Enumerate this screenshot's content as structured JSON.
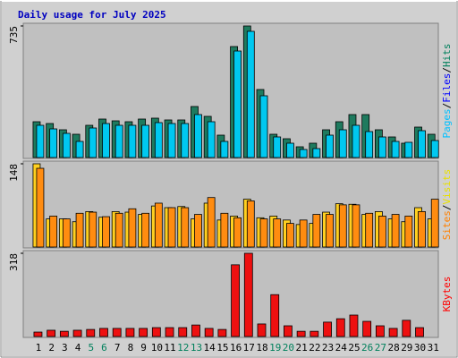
{
  "title": "Daily usage for July 2025",
  "categories": [
    "1",
    "2",
    "3",
    "4",
    "5",
    "6",
    "7",
    "8",
    "9",
    "10",
    "11",
    "12",
    "13",
    "14",
    "15",
    "16",
    "17",
    "18",
    "19",
    "20",
    "21",
    "22",
    "23",
    "24",
    "25",
    "26",
    "27",
    "28",
    "29",
    "30",
    "31"
  ],
  "weekend": [
    false,
    false,
    false,
    false,
    true,
    true,
    false,
    false,
    false,
    false,
    false,
    true,
    true,
    false,
    false,
    false,
    false,
    false,
    true,
    true,
    false,
    false,
    false,
    false,
    false,
    true,
    true,
    false,
    false,
    false,
    false
  ],
  "weekend_color": "#00805c",
  "chart_data": [
    {
      "type": "bar",
      "ylim": [
        0,
        735
      ],
      "yticks": [
        735
      ],
      "legend": [
        {
          "text": "Pages",
          "color": "#00c0ff"
        },
        {
          "text": "/",
          "color": "#000000"
        },
        {
          "text": "Files",
          "color": "#0000ff"
        },
        {
          "text": "/",
          "color": "#000000"
        },
        {
          "text": "Hits",
          "color": "#00805c"
        }
      ],
      "series": [
        {
          "color": "#1e7a5e",
          "values": [
            200,
            190,
            155,
            130,
            180,
            215,
            205,
            200,
            215,
            220,
            210,
            210,
            285,
            230,
            125,
            620,
            735,
            380,
            130,
            105,
            60,
            80,
            155,
            200,
            240,
            240,
            155,
            115,
            80,
            170,
            130
          ]
        },
        {
          "color": "#00c8f0",
          "values": [
            180,
            160,
            135,
            90,
            165,
            190,
            180,
            180,
            180,
            195,
            190,
            190,
            240,
            200,
            90,
            595,
            705,
            345,
            115,
            80,
            45,
            50,
            125,
            155,
            180,
            145,
            115,
            90,
            85,
            150,
            95
          ]
        }
      ]
    },
    {
      "type": "bar",
      "ylim": [
        0,
        148
      ],
      "yticks": [
        148
      ],
      "legend": [
        {
          "text": "Sites",
          "color": "#ff8000"
        },
        {
          "text": "/",
          "color": "#000000"
        },
        {
          "text": "Visits",
          "color": "#e8e000"
        }
      ],
      "series": [
        {
          "color": "#ffd020",
          "values": [
            148,
            50,
            50,
            45,
            63,
            53,
            63,
            62,
            58,
            73,
            70,
            72,
            50,
            78,
            48,
            55,
            85,
            52,
            55,
            48,
            40,
            42,
            62,
            77,
            76,
            58,
            63,
            50,
            45,
            70,
            50
          ]
        },
        {
          "color": "#ff8c10",
          "values": [
            140,
            55,
            50,
            60,
            62,
            54,
            60,
            68,
            60,
            78,
            70,
            70,
            58,
            88,
            60,
            52,
            82,
            50,
            50,
            42,
            48,
            58,
            58,
            75,
            75,
            60,
            55,
            58,
            55,
            63,
            85
          ]
        }
      ]
    },
    {
      "type": "bar",
      "ylim": [
        0,
        318
      ],
      "yticks": [
        318
      ],
      "legend": [
        {
          "text": "KBytes",
          "color": "#ff0000"
        }
      ],
      "series": [
        {
          "color": "#ee1010",
          "values": [
            17,
            24,
            20,
            24,
            27,
            31,
            31,
            31,
            31,
            34,
            34,
            34,
            44,
            31,
            27,
            274,
            318,
            48,
            160,
            41,
            20,
            20,
            55,
            68,
            82,
            58,
            41,
            31,
            62,
            34,
            0
          ]
        }
      ]
    }
  ]
}
